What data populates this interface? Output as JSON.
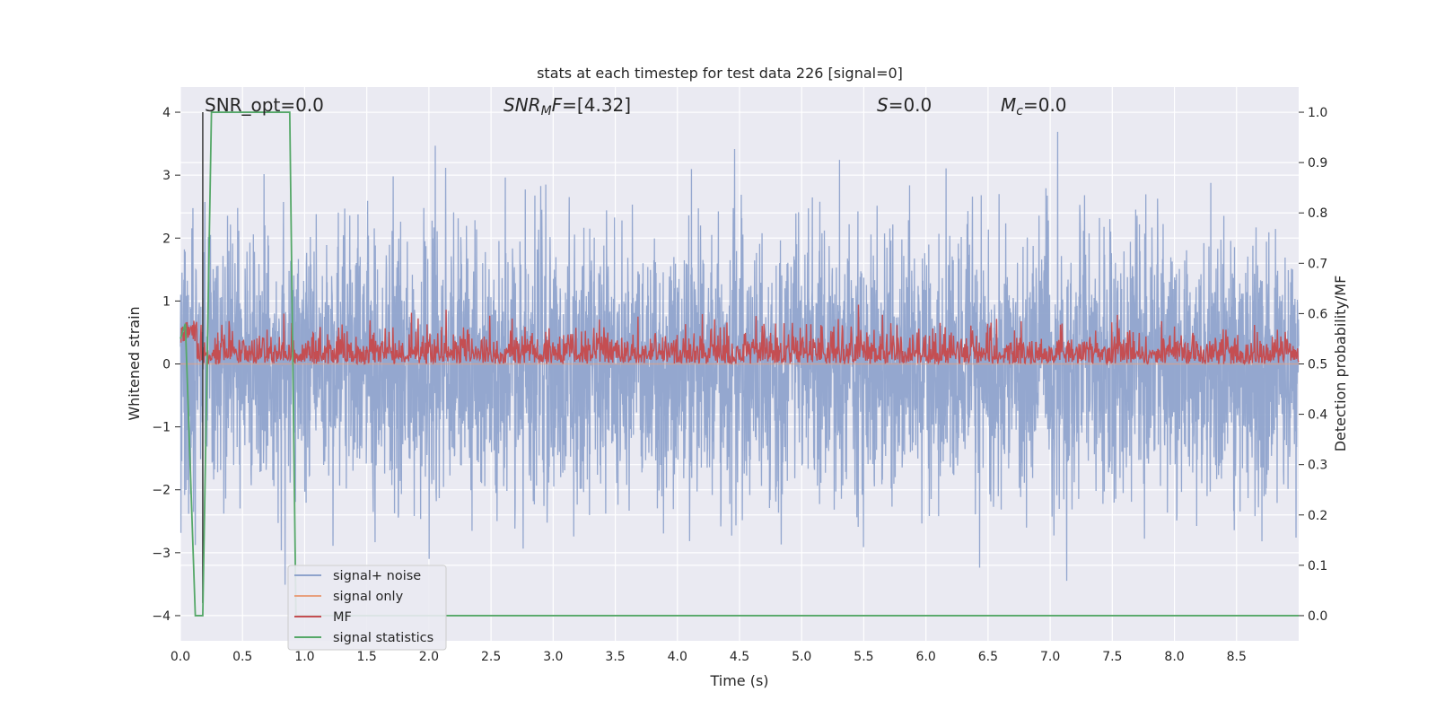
{
  "chart_data": {
    "type": "line",
    "title": "stats at each timestep for test data 226 [signal=0]",
    "xlabel": "Time (s)",
    "ylabel": "Whitened strain",
    "y2label": "Detection probability/MF",
    "xlim": [
      0.0,
      9.0
    ],
    "ylim": [
      -4.4,
      4.4
    ],
    "y2lim": [
      -0.05,
      1.05
    ],
    "xticks": [
      "0.0",
      "0.5",
      "1.0",
      "1.5",
      "2.0",
      "2.5",
      "3.0",
      "3.5",
      "4.0",
      "4.5",
      "5.0",
      "5.5",
      "6.0",
      "6.5",
      "7.0",
      "7.5",
      "8.0",
      "8.5"
    ],
    "yticks": [
      "4",
      "3",
      "2",
      "1",
      "0",
      "−1",
      "−2",
      "−3",
      "−4"
    ],
    "y2ticks": [
      "1.0",
      "0.9",
      "0.8",
      "0.7",
      "0.6",
      "0.5",
      "0.4",
      "0.3",
      "0.2",
      "0.1",
      "0.0"
    ],
    "grid": true,
    "legend_position": "lower-left",
    "annotations": {
      "snr_opt": "SNR_opt=0.0",
      "snr_mf_base": "SNR",
      "snr_mf_sub": "M",
      "snr_mf_rest": "F=[4.32]",
      "s_base": "S",
      "s_rest": "=0.0",
      "mc_base": "M",
      "mc_sub": "c",
      "mc_rest": "=0.0"
    },
    "series": [
      {
        "name": "signal+ noise",
        "color": "#8fa3cc",
        "axis": "left",
        "description_values": "noisy whitened strain between about -3.8 and 4.0 over 0-9 s",
        "envelope": {
          "typical_high": 2.0,
          "typical_low": -2.0,
          "max": 4.0,
          "min": -3.8
        }
      },
      {
        "name": "signal only",
        "color": "#e8a07e",
        "axis": "left",
        "x": [
          0.0,
          9.0
        ],
        "y": [
          0.0,
          0.0
        ]
      },
      {
        "name": "MF",
        "color": "#c44e52",
        "axis": "right",
        "envelope": {
          "baseline": 0.5,
          "typical_high": 0.57,
          "max": 0.62,
          "min": 0.5
        }
      },
      {
        "name": "signal statistics",
        "color": "#55a868",
        "axis": "right",
        "x": [
          0.0,
          0.04,
          0.12,
          0.18,
          0.25,
          0.88,
          0.93,
          0.97,
          9.0
        ],
        "y": [
          0.55,
          0.58,
          0.0,
          0.0,
          1.0,
          1.0,
          0.0,
          0.0,
          0.0
        ]
      }
    ],
    "vertical_marker": {
      "x": 0.18,
      "y_from": -3.8,
      "y_to": 4.0,
      "color": "#3a3a3a"
    }
  }
}
